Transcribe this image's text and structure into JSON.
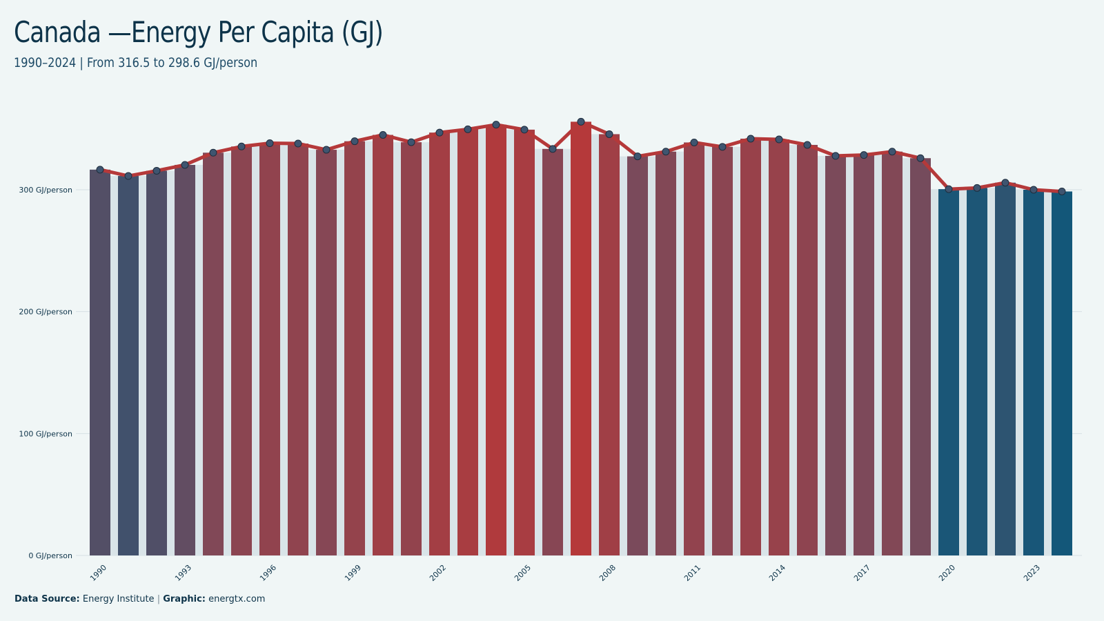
{
  "header": {
    "title": "Canada —Energy Per Capita (GJ)",
    "subtitle": "1990–2024 | From 316.5 to 298.6 GJ/person"
  },
  "footer": {
    "source_label": "Data Source:",
    "source_value": "Energy Institute",
    "separator": "|",
    "graphic_label": "Graphic:",
    "graphic_value": "energtx.com"
  },
  "chart_data": {
    "type": "bar",
    "title": "Canada —Energy Per Capita (GJ)",
    "subtitle": "1990–2024 | From 316.5 to 298.6 GJ/person",
    "xlabel": "",
    "ylabel": "",
    "ylim": [
      0,
      360
    ],
    "y_ticks": [
      {
        "value": 0,
        "label": "0 GJ/person"
      },
      {
        "value": 100,
        "label": "100 GJ/person"
      },
      {
        "value": 200,
        "label": "200 GJ/person"
      },
      {
        "value": 300,
        "label": "300 GJ/person"
      }
    ],
    "x_tick_labels": [
      "1990",
      "1993",
      "1996",
      "1999",
      "2002",
      "2005",
      "2008",
      "2011",
      "2014",
      "2017",
      "2020",
      "2023"
    ],
    "categories": [
      "1990",
      "1991",
      "1992",
      "1993",
      "1994",
      "1995",
      "1996",
      "1997",
      "1998",
      "1999",
      "2000",
      "2001",
      "2002",
      "2003",
      "2004",
      "2005",
      "2006",
      "2007",
      "2008",
      "2009",
      "2010",
      "2011",
      "2012",
      "2013",
      "2014",
      "2015",
      "2016",
      "2017",
      "2018",
      "2019",
      "2020",
      "2021",
      "2022",
      "2023",
      "2024"
    ],
    "values": [
      316.5,
      311.3,
      315.6,
      320.4,
      330.4,
      335.5,
      338.2,
      337.9,
      332.8,
      339.8,
      345.0,
      339.0,
      346.9,
      349.6,
      353.4,
      349.3,
      333.5,
      355.8,
      345.6,
      327.4,
      331.3,
      338.8,
      335.2,
      341.9,
      341.3,
      336.8,
      327.8,
      328.5,
      331.3,
      325.9,
      300.5,
      301.5,
      305.8,
      300.0,
      298.6
    ],
    "line_overlay": true,
    "grid": "horizontal",
    "colors": {
      "high": "#b5393a",
      "mid": "#7a4a5b",
      "low": "#135779",
      "line": "#b5393a",
      "marker": "#3f5570",
      "marker_stroke": "#1e2d3d",
      "gridline": "#d6e0e4",
      "bar_gap": "#d9e4e8"
    }
  }
}
